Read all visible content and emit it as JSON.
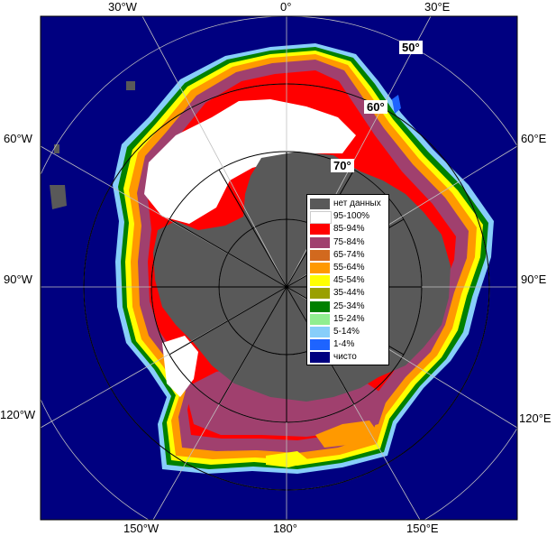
{
  "map": {
    "longitude_labels": [
      {
        "id": "lon-30w-top",
        "text": "30°W"
      },
      {
        "id": "lon-0",
        "text": "0°"
      },
      {
        "id": "lon-30e-top",
        "text": "30°E"
      },
      {
        "id": "lon-60w",
        "text": "60°W"
      },
      {
        "id": "lon-60e",
        "text": "60°E"
      },
      {
        "id": "lon-90w",
        "text": "90°W"
      },
      {
        "id": "lon-90e",
        "text": "90°E"
      },
      {
        "id": "lon-120w",
        "text": "120°W"
      },
      {
        "id": "lon-120e",
        "text": "120°E"
      },
      {
        "id": "lon-150w",
        "text": "150°W"
      },
      {
        "id": "lon-180",
        "text": "180°"
      },
      {
        "id": "lon-150e",
        "text": "150°E"
      }
    ],
    "latitude_labels": [
      {
        "id": "lat-50",
        "text": "50°"
      },
      {
        "id": "lat-60",
        "text": "60°"
      },
      {
        "id": "lat-70",
        "text": "70°"
      }
    ],
    "colors": {
      "ocean": "#000080",
      "land": "#595959",
      "grid": "#c0c0c0"
    }
  },
  "legend": {
    "items": [
      {
        "label": "нет данных",
        "color": "#595959"
      },
      {
        "label": "95-100%",
        "color": "#ffffff"
      },
      {
        "label": "85-94%",
        "color": "#ff0000"
      },
      {
        "label": "75-84%",
        "color": "#a0406e"
      },
      {
        "label": "65-74%",
        "color": "#d2691e"
      },
      {
        "label": "55-64%",
        "color": "#ff9900"
      },
      {
        "label": "45-54%",
        "color": "#ffff00"
      },
      {
        "label": "35-44%",
        "color": "#9aa000"
      },
      {
        "label": "25-34%",
        "color": "#008000"
      },
      {
        "label": "15-24%",
        "color": "#90ee90"
      },
      {
        "label": "5-14%",
        "color": "#87cefa"
      },
      {
        "label": "1-4%",
        "color": "#1e64ff"
      },
      {
        "label": "чисто",
        "color": "#000080"
      }
    ]
  }
}
